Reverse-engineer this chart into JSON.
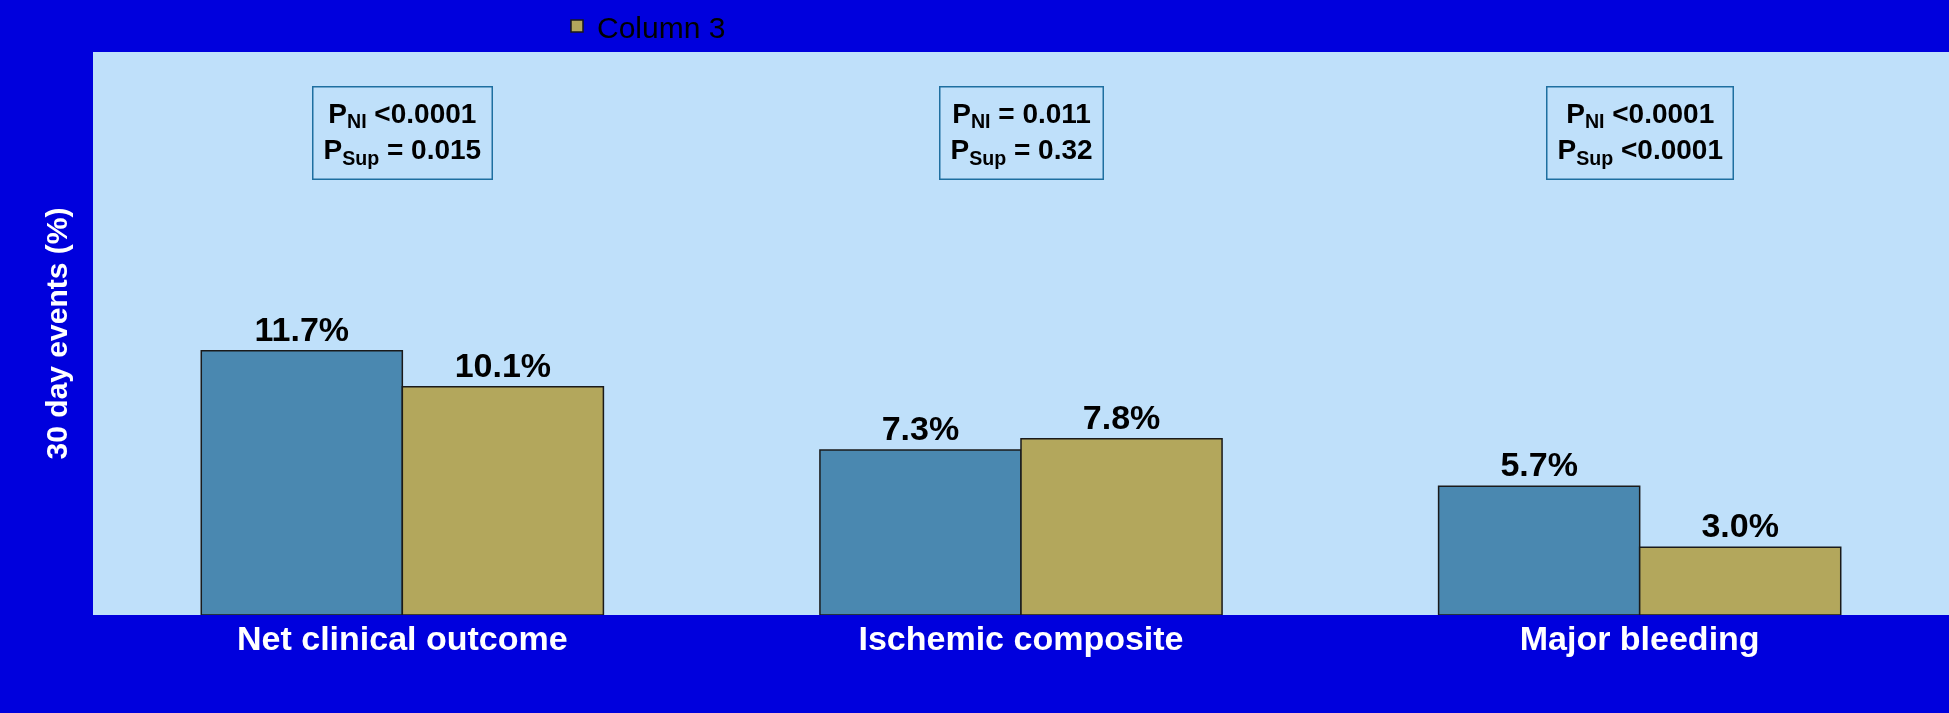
{
  "chart_data": {
    "type": "bar",
    "ylabel": "30 day events (%)",
    "categories": [
      "Net clinical outcome",
      "Ischemic composite",
      "Major bleeding"
    ],
    "series": [
      {
        "color": "#4a88b0",
        "values": [
          11.7,
          7.3,
          5.7
        ],
        "value_labels": [
          "11.7%",
          "7.3%",
          "5.7%"
        ]
      },
      {
        "name": "Column 3",
        "color": "#b3a75c",
        "values": [
          10.1,
          7.8,
          3.0
        ],
        "value_labels": [
          "10.1%",
          "7.8%",
          "3.0%"
        ]
      }
    ],
    "annotations": [
      "P$_{NI}$ <0.0001\nP$_{Sup}$ = 0.015",
      "P$_{NI}$ = 0.011\nP$_{Sup}$ = 0.32",
      "P$_{NI}$ <0.0001\nP$_{Sup}$ <0.0001"
    ],
    "tick_labels": "x",
    "legend": "top",
    "grid": false
  }
}
